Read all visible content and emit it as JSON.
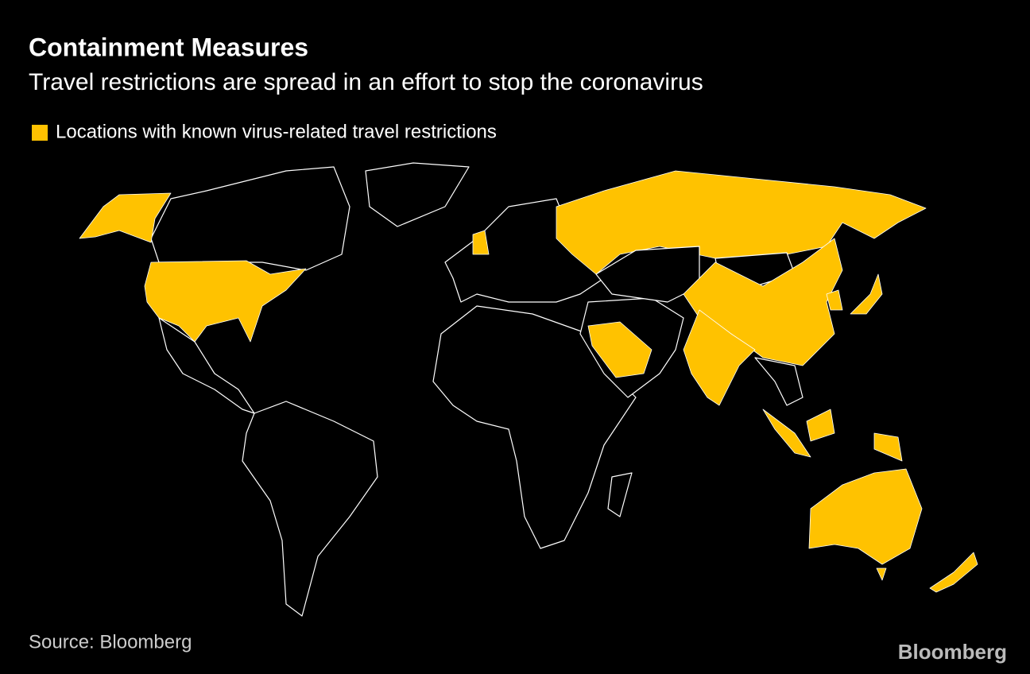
{
  "header": {
    "title": "Containment Measures",
    "subtitle": "Travel restrictions are spread in an effort to stop the coronavirus"
  },
  "legend": {
    "label": "Locations with known virus-related travel restrictions"
  },
  "footer": {
    "source": "Source: Bloomberg",
    "logo": "Bloomberg"
  }
}
